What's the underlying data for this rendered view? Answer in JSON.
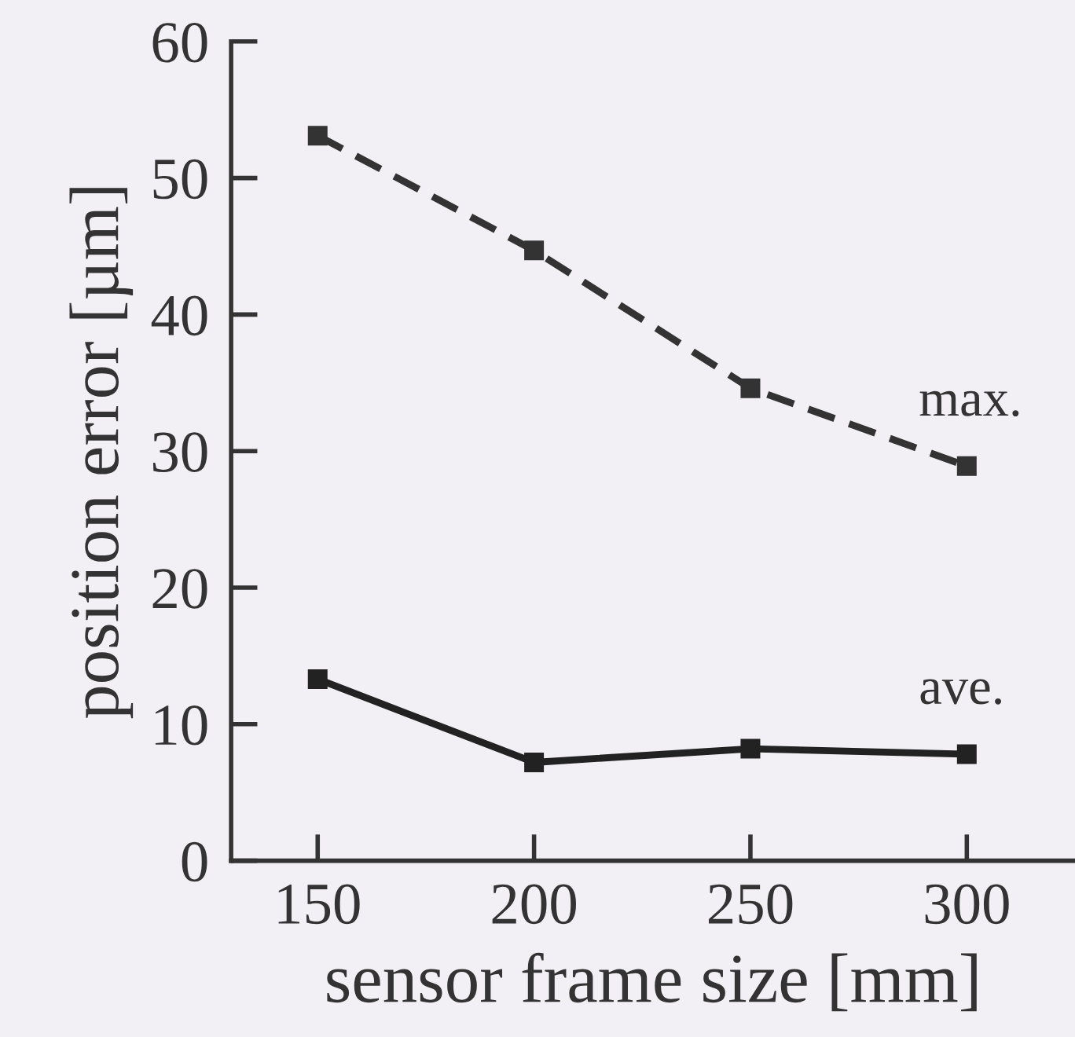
{
  "chart_data": {
    "type": "line",
    "xlabel": "sensor frame size [mm]",
    "ylabel": "position error [µm]",
    "x": [
      150,
      200,
      250,
      300
    ],
    "series": [
      {
        "name": "max.",
        "color": "#333333",
        "line_style": "dashed",
        "values": [
          53.1,
          44.7,
          34.6,
          28.9
        ]
      },
      {
        "name": "ave.",
        "color": "#222222",
        "line_style": "solid",
        "values": [
          13.3,
          7.2,
          8.2,
          7.8
        ]
      }
    ],
    "xlim": [
      130,
      325
    ],
    "xticks": [
      150,
      200,
      250,
      300
    ],
    "ylim": [
      0,
      60
    ],
    "yticks": [
      0,
      10,
      20,
      30,
      40,
      50,
      60
    ],
    "marker": "square",
    "grid": false,
    "legend": false
  }
}
